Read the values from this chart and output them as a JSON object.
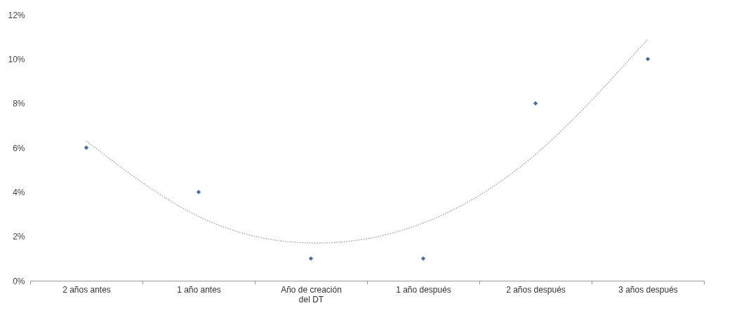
{
  "chart_data": {
    "type": "scatter",
    "categories": [
      "2 años antes",
      "1 año antes",
      "Año de creación del DT",
      "1 año después",
      "2 años después",
      "3 años después"
    ],
    "series": [
      {
        "color": "#3d6fb8",
        "marker": "diamond",
        "values": [
          6,
          4,
          1,
          1,
          8,
          10
        ]
      },
      {
        "type": "line",
        "color": "#9a9a9a",
        "line_style": "dotted",
        "marker": "none",
        "x": [
          "2 años antes",
          "1 año antes",
          "Año de creación del DT",
          "1 año después",
          "2 años después",
          "3 años después"
        ],
        "values": [
          6.3,
          2.9,
          1.7,
          2.6,
          5.7,
          10.9
        ]
      }
    ],
    "ylim": [
      0,
      12
    ],
    "yticks": [
      {
        "value": 0,
        "label": "0%"
      },
      {
        "value": 2,
        "label": "2%"
      },
      {
        "value": 4,
        "label": "4%"
      },
      {
        "value": 6,
        "label": "6%"
      },
      {
        "value": 8,
        "label": "8%"
      },
      {
        "value": 10,
        "label": "10%"
      },
      {
        "value": 12,
        "label": "12%"
      }
    ],
    "grid": false
  }
}
